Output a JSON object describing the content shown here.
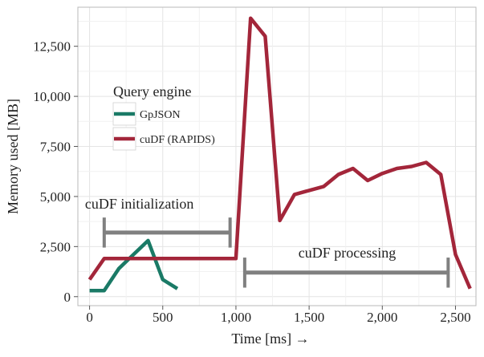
{
  "chart_data": {
    "type": "line",
    "xlabel": "Time [ms] →",
    "ylabel": "Memory used [MB]",
    "xlim": [
      -80,
      2640
    ],
    "ylim": [
      -450,
      14450
    ],
    "x_ticks": [
      0,
      500,
      1000,
      1500,
      2000,
      2500
    ],
    "x_tick_labels": [
      "0",
      "500",
      "1,000",
      "1,500",
      "2,000",
      "2,500"
    ],
    "y_ticks": [
      0,
      2500,
      5000,
      7500,
      10000,
      12500
    ],
    "y_tick_labels": [
      "0",
      "2,500",
      "5,000",
      "7,500",
      "10,000",
      "12,500"
    ],
    "grid": true,
    "legend": {
      "title": "Query engine",
      "placement": "top-left"
    },
    "series": [
      {
        "name": "GpJSON",
        "color": "#1a7a66",
        "points": [
          [
            0,
            300
          ],
          [
            100,
            300
          ],
          [
            200,
            1400
          ],
          [
            300,
            2100
          ],
          [
            400,
            2800
          ],
          [
            500,
            850
          ],
          [
            600,
            400
          ]
        ]
      },
      {
        "name": "cuDF (RAPIDS)",
        "color": "#a3263a",
        "points": [
          [
            0,
            850
          ],
          [
            100,
            1900
          ],
          [
            200,
            1900
          ],
          [
            500,
            1900
          ],
          [
            1000,
            1900
          ],
          [
            1100,
            13900
          ],
          [
            1200,
            13000
          ],
          [
            1300,
            3800
          ],
          [
            1400,
            5100
          ],
          [
            1500,
            5300
          ],
          [
            1600,
            5500
          ],
          [
            1700,
            6100
          ],
          [
            1800,
            6400
          ],
          [
            1900,
            5800
          ],
          [
            2000,
            6150
          ],
          [
            2100,
            6400
          ],
          [
            2200,
            6500
          ],
          [
            2300,
            6700
          ],
          [
            2400,
            6100
          ],
          [
            2500,
            2100
          ],
          [
            2600,
            400
          ]
        ]
      }
    ],
    "annotations": [
      {
        "label": "cuDF initialization",
        "color": "#808080",
        "x0": 100,
        "x1": 960,
        "y": 3200,
        "tick_half": 750,
        "label_x": 340,
        "label_y": 4400
      },
      {
        "label": "cuDF processing",
        "color": "#808080",
        "x0": 1060,
        "x1": 2450,
        "y": 1200,
        "tick_half": 750,
        "label_x": 1760,
        "label_y": 1950
      }
    ]
  }
}
